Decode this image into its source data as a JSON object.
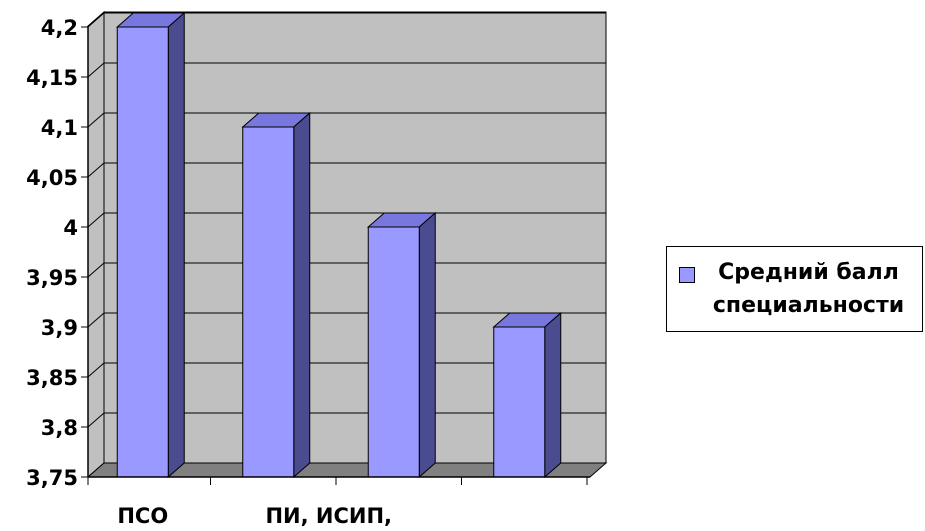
{
  "chart_data": {
    "type": "bar",
    "categories": [
      "ПСО",
      "",
      "ПИ, ИСИП,",
      ""
    ],
    "series": [
      {
        "name": "Средний балл специальности",
        "values": [
          4.2,
          4.1,
          4.0,
          3.9
        ]
      }
    ],
    "ylim": [
      3.75,
      4.2
    ],
    "yticks": [
      "3,75",
      "3,8",
      "3,85",
      "3,9",
      "3,95",
      "4",
      "4,05",
      "4,1",
      "4,15",
      "4,2"
    ],
    "grid": true,
    "legend": "right",
    "colors": {
      "bar_front": "#9999ff",
      "bar_top": "#7777dd",
      "bar_side": "#4b4b8f",
      "wall": "#c0c0c0",
      "floor": "#808080",
      "gridline": "#000000"
    }
  }
}
